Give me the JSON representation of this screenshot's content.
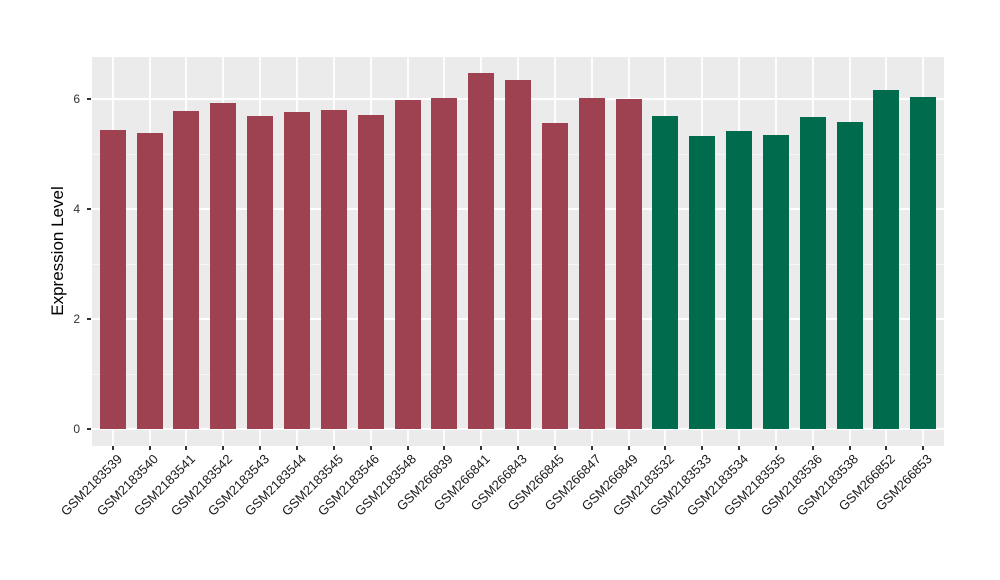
{
  "chart_data": {
    "type": "bar",
    "title": "",
    "xlabel": "",
    "ylabel": "Expression Level",
    "categories": [
      "GSM2183539",
      "GSM2183540",
      "GSM2183541",
      "GSM2183542",
      "GSM2183543",
      "GSM2183544",
      "GSM2183545",
      "GSM2183546",
      "GSM2183548",
      "GSM266839",
      "GSM266841",
      "GSM266843",
      "GSM266845",
      "GSM266847",
      "GSM266849",
      "GSM2183532",
      "GSM2183533",
      "GSM2183534",
      "GSM2183535",
      "GSM2183536",
      "GSM2183538",
      "GSM266852",
      "GSM266853"
    ],
    "values": [
      5.44,
      5.38,
      5.79,
      5.94,
      5.7,
      5.77,
      5.81,
      5.72,
      5.99,
      6.02,
      6.47,
      6.36,
      5.57,
      6.02,
      6.01,
      5.7,
      5.33,
      5.43,
      5.35,
      5.68,
      5.59,
      6.17,
      6.05
    ],
    "bar_groups": [
      "a",
      "a",
      "a",
      "a",
      "a",
      "a",
      "a",
      "a",
      "a",
      "a",
      "a",
      "a",
      "a",
      "a",
      "a",
      "b",
      "b",
      "b",
      "b",
      "b",
      "b",
      "b",
      "b"
    ],
    "group_colors": {
      "a": "#9E4252",
      "b": "#006C4D"
    },
    "yticks": [
      0,
      2,
      4,
      6
    ],
    "minor_yticks": [
      1,
      3,
      5
    ],
    "ylim": [
      0,
      6.77
    ],
    "grid": "on",
    "legend": "none",
    "panel_bg": "#EBEBEB",
    "grid_color": "#FFFFFF",
    "axis_text_color": "#333333"
  }
}
